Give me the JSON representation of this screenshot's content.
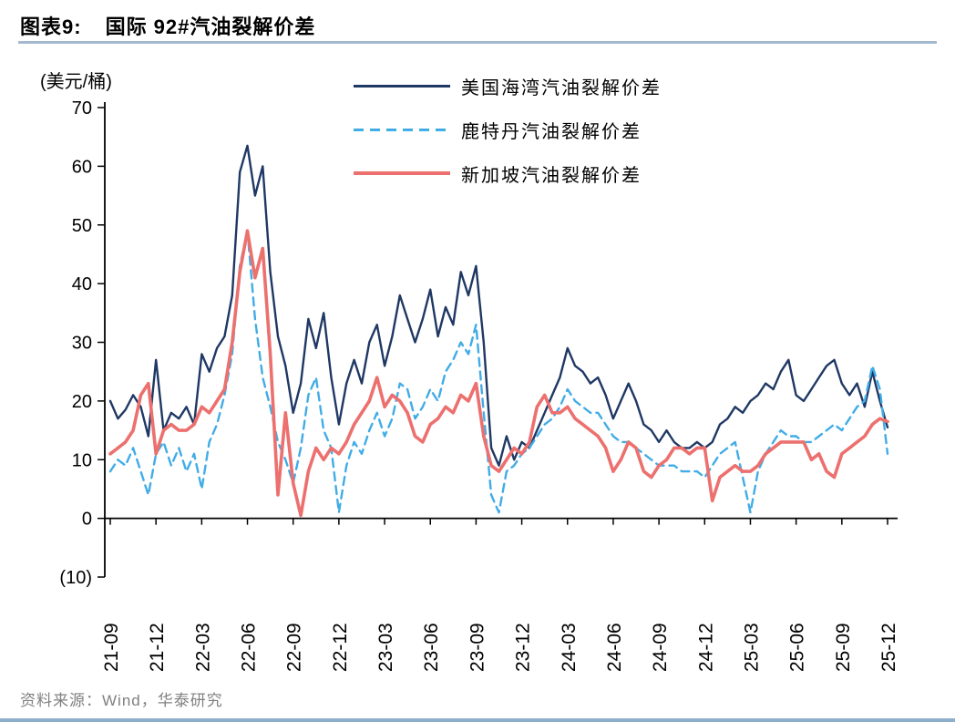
{
  "header": {
    "label": "图表9:",
    "title": "国际 92#汽油裂解价差"
  },
  "footer": {
    "source": "资料来源：Wind，华泰研究"
  },
  "colors": {
    "title_rule": "#A3B9CE",
    "bottom_rule": "#8FAECB",
    "axis": "#000000",
    "footer_text": "#808080",
    "us_gulf": "#1F3864",
    "rotterdam": "#41ACE6",
    "singapore": "#EC706E"
  },
  "chart_data": {
    "type": "line",
    "title": "国际 92#汽油裂解价差",
    "unit_label": "(美元/桶)",
    "ylim": [
      -10,
      70
    ],
    "yticks": [
      70,
      60,
      50,
      40,
      30,
      20,
      10,
      0,
      -10
    ],
    "ytick_labels": [
      "70",
      "60",
      "50",
      "40",
      "30",
      "20",
      "10",
      "0",
      "(10)"
    ],
    "xtick_labels": [
      "21-09",
      "21-12",
      "22-03",
      "22-06",
      "22-09",
      "22-12",
      "23-03",
      "23-06",
      "23-09",
      "23-12",
      "24-03",
      "24-06",
      "24-09",
      "24-12",
      "25-03",
      "25-06",
      "25-09",
      "25-12"
    ],
    "xticks_months": [
      0,
      3,
      6,
      9,
      12,
      15,
      18,
      21,
      24,
      27,
      30,
      33,
      36,
      39,
      42,
      45,
      48,
      51
    ],
    "x_step_months": 0.5,
    "x_range_months": [
      0,
      51
    ],
    "grid": false,
    "legend_position": "top-center",
    "series": [
      {
        "name": "美国海湾汽油裂解价差",
        "color": "#1F3864",
        "style": "solid",
        "width": 2.4,
        "values": [
          20,
          17,
          18.5,
          21,
          19,
          14,
          27,
          15,
          18,
          17,
          19,
          16,
          28,
          25,
          29,
          31,
          38,
          59,
          63.5,
          55,
          60,
          42,
          31,
          26,
          18,
          23,
          34,
          29,
          35,
          24,
          16,
          23,
          27,
          23,
          30,
          33,
          26,
          31,
          38,
          34,
          30,
          34,
          39,
          31,
          36,
          33,
          42,
          38,
          43,
          30,
          12,
          9,
          14,
          10,
          13,
          12,
          15,
          18,
          21,
          24,
          29,
          26,
          25,
          23,
          24,
          21,
          17,
          20,
          23,
          20,
          16,
          15,
          13,
          15,
          13,
          12,
          12,
          13,
          12,
          13,
          16,
          17,
          19,
          18,
          20,
          21,
          23,
          22,
          25,
          27,
          21,
          20,
          22,
          24,
          26,
          27,
          23,
          21,
          23,
          19,
          25,
          20,
          15.5
        ]
      },
      {
        "name": "鹿特丹汽油裂解价差",
        "color": "#41ACE6",
        "style": "dashed",
        "width": 2.4,
        "values": [
          8,
          10,
          9,
          12,
          8,
          4,
          11,
          13,
          9,
          12,
          8,
          11,
          5,
          13,
          16,
          21,
          28,
          43,
          49,
          34,
          24,
          19,
          13,
          10,
          6,
          12,
          21,
          24,
          15,
          12,
          1,
          9,
          13,
          11,
          15,
          18,
          14,
          17,
          23,
          22,
          17,
          19,
          22,
          20,
          25,
          27,
          30,
          28,
          33,
          18,
          4,
          1,
          8,
          9,
          11,
          12,
          14,
          16,
          17,
          19,
          22,
          20,
          19,
          18,
          18,
          16,
          14,
          13,
          13,
          12,
          11,
          10,
          9,
          9,
          9,
          8,
          8,
          8,
          7,
          9,
          11,
          12,
          13,
          7,
          1,
          8,
          11,
          13,
          15,
          14,
          14,
          13,
          13,
          14,
          15,
          16,
          15,
          17,
          19,
          20,
          26,
          22,
          11
        ]
      },
      {
        "name": "新加坡汽油裂解价差",
        "color": "#EC706E",
        "style": "solid",
        "width": 3.6,
        "values": [
          11,
          12,
          13,
          15,
          21,
          23,
          11,
          15,
          16,
          15,
          15,
          16,
          19,
          18,
          20,
          22,
          30,
          42,
          49,
          41,
          46,
          28,
          4,
          18,
          6,
          0.5,
          8,
          12,
          10,
          12,
          11,
          13,
          16,
          18,
          20,
          24,
          19,
          21,
          20,
          18,
          14,
          13,
          16,
          17,
          19,
          18,
          21,
          20,
          23,
          14,
          9,
          8,
          10,
          12,
          11,
          13,
          19,
          21,
          18,
          18,
          19,
          17,
          16,
          15,
          14,
          12,
          8,
          10,
          13,
          12,
          8,
          7,
          9,
          10,
          12,
          12,
          11,
          12,
          12,
          3,
          7,
          8,
          9,
          8,
          8,
          9,
          11,
          12,
          13,
          13,
          13,
          13,
          10,
          11,
          8,
          7,
          11,
          12,
          13,
          14,
          16,
          17,
          16.5
        ]
      }
    ]
  }
}
